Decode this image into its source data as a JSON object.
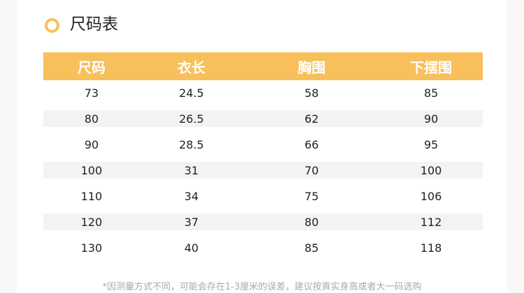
{
  "title": "尺码表",
  "accent": "#f8c05a",
  "headers": [
    "尺码",
    "衣长",
    "胸围",
    "下摆围"
  ],
  "rows": [
    [
      "73",
      "24.5",
      "58",
      "85"
    ],
    [
      "80",
      "26.5",
      "62",
      "90"
    ],
    [
      "90",
      "28.5",
      "66",
      "95"
    ],
    [
      "100",
      "31",
      "70",
      "100"
    ],
    [
      "110",
      "34",
      "75",
      "106"
    ],
    [
      "120",
      "37",
      "80",
      "112"
    ],
    [
      "130",
      "40",
      "85",
      "118"
    ]
  ],
  "note": "*因测量方式不同，可能会存在1-3厘米的误差，建议按真实身高或者大一码选购"
}
